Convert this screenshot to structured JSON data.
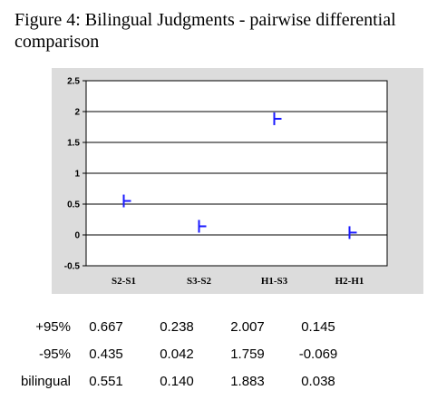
{
  "figure": {
    "title": "Figure 4: Bilingual Judgments - pairwise differential comparison"
  },
  "chart_data": {
    "type": "scatter",
    "title": "",
    "xlabel": "",
    "ylabel": "",
    "categories": [
      "S2-S1",
      "S3-S2",
      "H1-S3",
      "H2-H1"
    ],
    "values": [
      0.551,
      0.14,
      1.883,
      0.038
    ],
    "ylim": [
      -0.5,
      2.5
    ],
    "yticks": [
      "2.5",
      "2",
      "1.5",
      "1",
      "0.5",
      "0",
      "-0.5"
    ],
    "grid": true,
    "marker_color": "#1a1aff",
    "plot_background": "#ffffff",
    "panel_background": "#dcdcdc"
  },
  "table": {
    "rows": [
      {
        "label": "+95%",
        "values": [
          "0.667",
          "0.238",
          "2.007",
          "0.145"
        ]
      },
      {
        "label": "-95%",
        "values": [
          "0.435",
          "0.042",
          "1.759",
          "-0.069"
        ]
      },
      {
        "label": "bilingual",
        "values": [
          "0.551",
          "0.140",
          "1.883",
          "0.038"
        ]
      }
    ]
  }
}
